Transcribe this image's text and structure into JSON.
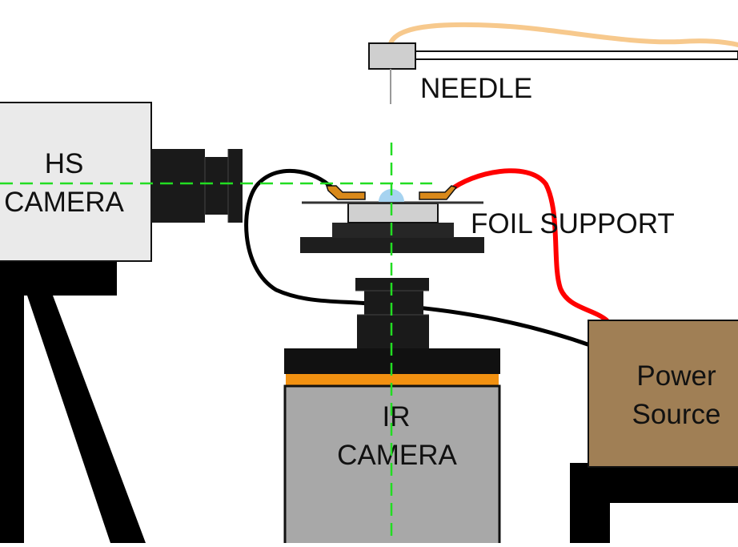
{
  "labels": {
    "needle": "NEEDLE",
    "hs_camera_line1": "HS",
    "hs_camera_line2": "CAMERA",
    "foil_support": "FOIL SUPPORT",
    "ir_camera_line1": "IR",
    "ir_camera_line2": "CAMERA",
    "power_source_line1": "Power",
    "power_source_line2": "Source"
  },
  "colors": {
    "background": "#ffffff",
    "camera_body_light": "#eaeaea",
    "ir_camera_body": "#a8a8a8",
    "ir_filter_band": "#f29111",
    "dark_parts": "#1a1a1a",
    "power_source": "#a07f55",
    "wire_red": "#ff0000",
    "wire_black": "#000000",
    "needle_tube": "#f7c98d",
    "alignment_line": "#22dd22",
    "electrode": "#d9891a",
    "droplet": "#a6d3f0",
    "foil_holder": "#d0d0d0"
  }
}
